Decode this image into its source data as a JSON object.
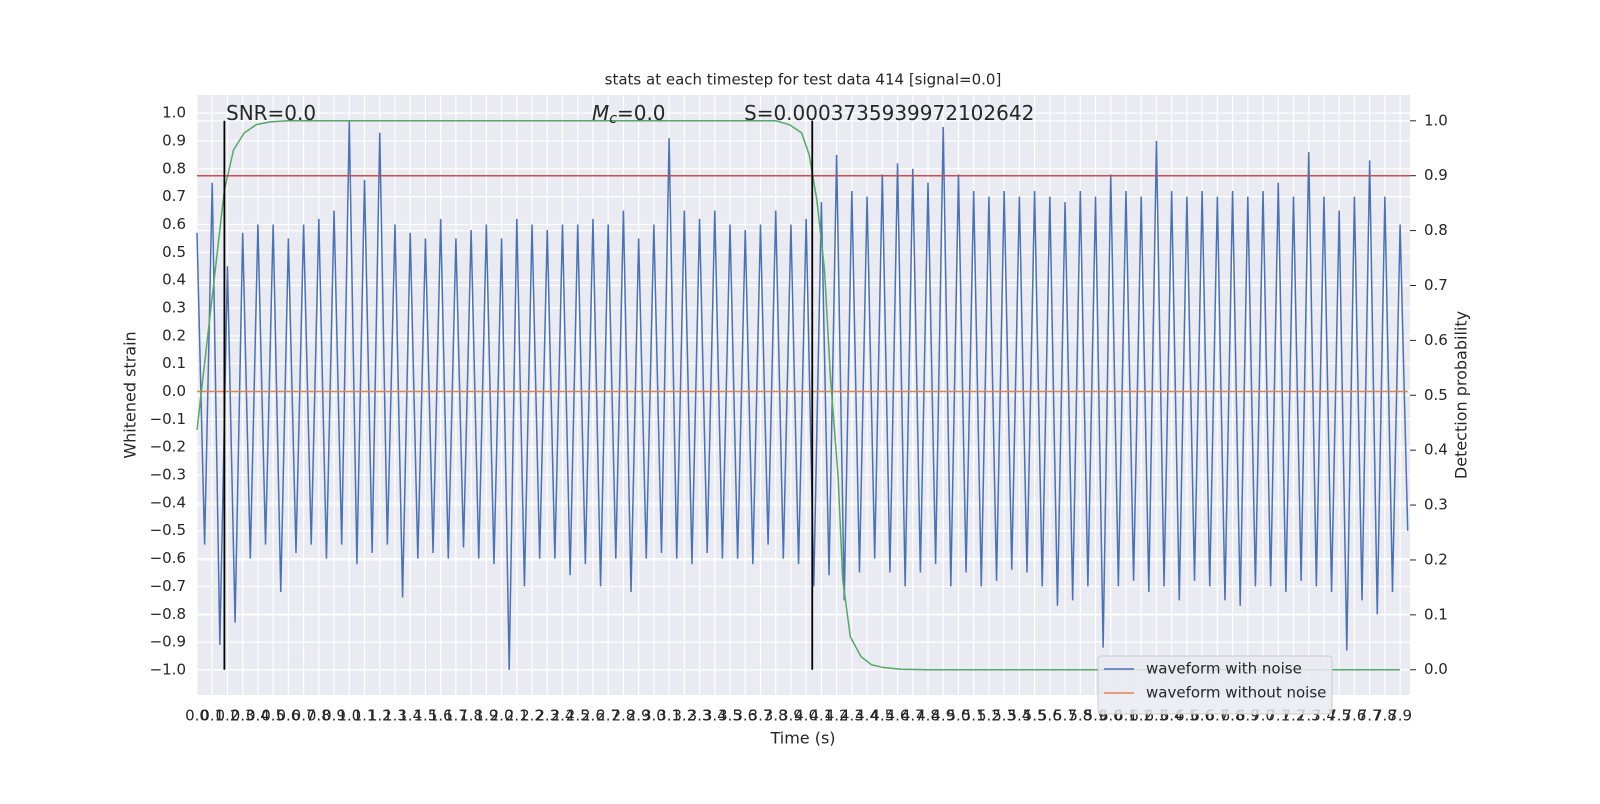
{
  "chart_data": {
    "type": "line",
    "title": "stats at each timestep for test data 414 [signal=0.0]",
    "x_label": "Time (s)",
    "y_label": "Whitened strain",
    "y2_label": "Detection probability",
    "xlim": [
      0,
      7.965
    ],
    "ylim": [
      -1.09,
      1.065
    ],
    "y2lim": [
      -0.046,
      1.047
    ],
    "grid": true,
    "legend": "lower right",
    "xticks": [
      {
        "value": 0,
        "label": "0.0"
      },
      0.1,
      0.2,
      0.3,
      0.4,
      0.5,
      0.6,
      0.7,
      0.8,
      0.9,
      {
        "value": 1,
        "label": "1.0"
      },
      1.1,
      1.2,
      1.3,
      1.4,
      1.5,
      1.6,
      1.7,
      1.8,
      1.9,
      {
        "value": 2,
        "label": "2.0"
      },
      2.1,
      2.2,
      2.3,
      2.4,
      2.5,
      2.6,
      2.7,
      2.8,
      2.9,
      {
        "value": 3,
        "label": "3.0"
      },
      3.1,
      3.2,
      3.3,
      3.4,
      3.5,
      3.6,
      3.7,
      3.8,
      3.9,
      {
        "value": 4,
        "label": "4.0"
      },
      4.1,
      4.2,
      4.3,
      4.4,
      4.5,
      4.6,
      4.7,
      4.8,
      4.9,
      {
        "value": 5,
        "label": "5.0"
      },
      5.1,
      5.2,
      5.3,
      5.4,
      5.5,
      5.6,
      5.7,
      5.8,
      5.9,
      {
        "value": 6,
        "label": "6.0"
      },
      6.1,
      6.2,
      6.3,
      6.4,
      6.5,
      6.6,
      6.7,
      6.8,
      6.9,
      {
        "value": 7,
        "label": "7.0"
      },
      7.1,
      7.2,
      7.3,
      7.4,
      7.5,
      7.6,
      7.7,
      7.8,
      7.9
    ],
    "yticks": [
      {
        "value": -1,
        "label": "−1.0"
      },
      {
        "value": -0.9,
        "label": "−0.9"
      },
      {
        "value": -0.8,
        "label": "−0.8"
      },
      {
        "value": -0.7,
        "label": "−0.7"
      },
      {
        "value": -0.6,
        "label": "−0.6"
      },
      {
        "value": -0.5,
        "label": "−0.5"
      },
      {
        "value": -0.4,
        "label": "−0.4"
      },
      {
        "value": -0.3,
        "label": "−0.3"
      },
      {
        "value": -0.2,
        "label": "−0.2"
      },
      {
        "value": -0.1,
        "label": "−0.1"
      },
      {
        "value": 0,
        "label": "0.0"
      },
      0.1,
      0.2,
      0.3,
      0.4,
      0.5,
      0.6,
      0.7,
      0.8,
      0.9,
      {
        "value": 1,
        "label": "1.0"
      }
    ],
    "y2ticks": [
      {
        "value": 0,
        "label": "0.0"
      },
      0.1,
      0.2,
      0.3,
      0.4,
      0.5,
      0.6,
      0.7,
      0.8,
      0.9,
      {
        "value": 1,
        "label": "1.0"
      }
    ],
    "series": [
      {
        "name": "waveform with noise",
        "color": "#4c72b0",
        "x": [
          0,
          0.05,
          0.1,
          0.15,
          0.2,
          0.25,
          0.3,
          0.35,
          0.4,
          0.45,
          0.5,
          0.55,
          0.6,
          0.65,
          0.7,
          0.75,
          0.8,
          0.85,
          0.9,
          0.95,
          1,
          1.05,
          1.1,
          1.15,
          1.2,
          1.25,
          1.3,
          1.35,
          1.4,
          1.45,
          1.5,
          1.55,
          1.6,
          1.65,
          1.7,
          1.75,
          1.8,
          1.85,
          1.9,
          1.95,
          2,
          2.05,
          2.1,
          2.15,
          2.2,
          2.25,
          2.3,
          2.35,
          2.4,
          2.45,
          2.5,
          2.55,
          2.6,
          2.65,
          2.7,
          2.75,
          2.8,
          2.85,
          2.9,
          2.95,
          3,
          3.05,
          3.1,
          3.15,
          3.2,
          3.25,
          3.3,
          3.35,
          3.4,
          3.45,
          3.5,
          3.55,
          3.6,
          3.65,
          3.7,
          3.75,
          3.8,
          3.85,
          3.9,
          3.95,
          4,
          4.05,
          4.1,
          4.15,
          4.2,
          4.25,
          4.3,
          4.35,
          4.4,
          4.45,
          4.5,
          4.55,
          4.6,
          4.65,
          4.7,
          4.75,
          4.8,
          4.85,
          4.9,
          4.95,
          5,
          5.05,
          5.1,
          5.15,
          5.2,
          5.25,
          5.3,
          5.35,
          5.4,
          5.45,
          5.5,
          5.55,
          5.6,
          5.65,
          5.7,
          5.75,
          5.8,
          5.85,
          5.9,
          5.95,
          6,
          6.05,
          6.1,
          6.15,
          6.2,
          6.25,
          6.3,
          6.35,
          6.4,
          6.45,
          6.5,
          6.55,
          6.6,
          6.65,
          6.7,
          6.75,
          6.8,
          6.85,
          6.9,
          6.95,
          7,
          7.05,
          7.1,
          7.15,
          7.2,
          7.25,
          7.3,
          7.35,
          7.4,
          7.45,
          7.5,
          7.55,
          7.6,
          7.65,
          7.7,
          7.75,
          7.8,
          7.85,
          7.9,
          7.95
        ],
        "values": [
          0.57,
          -0.55,
          0.75,
          -0.91,
          0.45,
          -0.83,
          0.57,
          -0.6,
          0.6,
          -0.55,
          0.6,
          -0.72,
          0.55,
          -0.58,
          0.6,
          -0.55,
          0.62,
          -0.6,
          0.65,
          -0.55,
          0.97,
          -0.62,
          0.76,
          -0.58,
          0.93,
          -0.55,
          0.6,
          -0.74,
          0.57,
          -0.6,
          0.55,
          -0.58,
          0.62,
          -0.6,
          0.55,
          -0.56,
          0.58,
          -0.6,
          0.6,
          -0.62,
          0.55,
          -1.0,
          0.62,
          -0.7,
          0.6,
          -0.6,
          0.58,
          -0.6,
          0.6,
          -0.66,
          0.6,
          -0.62,
          0.62,
          -0.7,
          0.6,
          -0.6,
          0.65,
          -0.72,
          0.55,
          -0.6,
          0.6,
          -0.58,
          0.91,
          -0.6,
          0.65,
          -0.62,
          0.62,
          -0.58,
          0.65,
          -0.6,
          0.6,
          -0.6,
          0.58,
          -0.62,
          0.6,
          -0.55,
          0.65,
          -0.6,
          0.6,
          -0.62,
          0.62,
          -0.7,
          0.68,
          -0.66,
          0.85,
          -0.75,
          0.72,
          -0.65,
          0.7,
          -0.6,
          0.78,
          -0.65,
          0.82,
          -0.7,
          0.8,
          -0.65,
          0.75,
          -0.62,
          0.95,
          -0.7,
          0.78,
          -0.65,
          0.72,
          -0.7,
          0.7,
          -0.68,
          0.72,
          -0.64,
          0.7,
          -0.65,
          0.72,
          -0.7,
          0.7,
          -0.77,
          0.68,
          -0.75,
          0.72,
          -0.7,
          0.7,
          -0.92,
          0.78,
          -0.7,
          0.72,
          -0.68,
          0.7,
          -0.72,
          0.9,
          -0.7,
          0.72,
          -0.75,
          0.7,
          -0.68,
          0.72,
          -0.7,
          0.7,
          -0.75,
          0.72,
          -0.77,
          0.7,
          -0.7,
          0.72,
          -0.7,
          0.75,
          -0.72,
          0.7,
          -0.68,
          0.86,
          -0.7,
          0.7,
          -0.72,
          0.65,
          -0.93,
          0.7,
          -0.75,
          0.83,
          -0.8,
          0.7,
          -0.72,
          0.6,
          -0.5
        ]
      },
      {
        "name": "waveform without noise",
        "color": "#dd8452",
        "x": [
          0,
          7.95
        ],
        "values": [
          0,
          0
        ]
      },
      {
        "color": "#55a868",
        "axis": "y2",
        "x": [
          0,
          0.18,
          0.24,
          0.31,
          0.39,
          0.48,
          0.6,
          3.8,
          3.89,
          3.97,
          4.02,
          4.07,
          4.12,
          4.16,
          4.21,
          4.24,
          4.29,
          4.36,
          4.43,
          4.51,
          4.62,
          4.8,
          7.9
        ],
        "values": [
          0.437,
          0.874,
          0.947,
          0.978,
          0.993,
          0.998,
          1.0,
          1.0,
          0.993,
          0.978,
          0.938,
          0.856,
          0.73,
          0.53,
          0.35,
          0.164,
          0.06,
          0.024,
          0.009,
          0.004,
          0.001,
          0,
          0
        ]
      }
    ],
    "hlines": [
      {
        "y": 0.9,
        "axis": "y2",
        "color": "#c44e52"
      }
    ],
    "vlines": [
      {
        "x": 0.18,
        "ymin": 0,
        "ymax": 1,
        "axis": "y2",
        "color": "#000000"
      },
      {
        "x": 4.04,
        "ymin": 0,
        "ymax": 1,
        "axis": "y2",
        "color": "#000000"
      }
    ],
    "annotations": [
      {
        "text": "SNR=0.0"
      },
      {
        "symbol": "M",
        "subscript": "c",
        "text": "=0.0"
      },
      {
        "text": "S=0.0003735939972102642"
      }
    ]
  }
}
